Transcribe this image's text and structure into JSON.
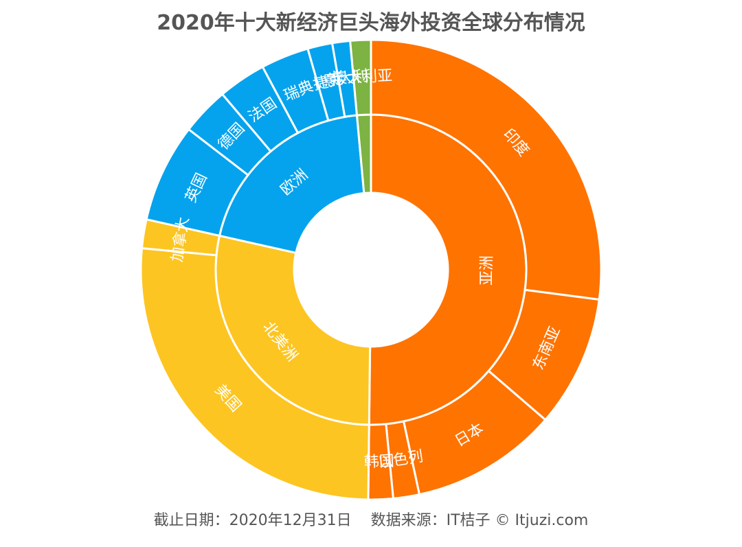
{
  "title": "2020年十大新经济巨头海外投资全球分布情况",
  "footer": "截止日期：2020年12月31日    数据来源：IT桔子 © Itjuzi.com",
  "chart_data": {
    "type": "sunburst",
    "title": "2020年十大新经济巨头海外投资全球分布情况",
    "inner": [
      {
        "name": "亚洲",
        "color": "#ff7300"
      },
      {
        "name": "北美洲",
        "color": "#fdc522"
      },
      {
        "name": "欧洲",
        "color": "#05a3ed"
      },
      {
        "name": "澳大利亚",
        "color": "#7cb342"
      }
    ],
    "outer": [
      {
        "name": "印度",
        "parent": "亚洲",
        "value": 28.1
      },
      {
        "name": "东南亚",
        "parent": "亚洲",
        "value": 9.6
      },
      {
        "name": "日本",
        "parent": "亚洲",
        "value": 10.7
      },
      {
        "name": "以色列",
        "parent": "亚洲",
        "value": 1.9
      },
      {
        "name": "韩国",
        "parent": "亚洲",
        "value": 1.8
      },
      {
        "name": "美国",
        "parent": "北美洲",
        "value": 27.3
      },
      {
        "name": "加拿大",
        "parent": "北美洲",
        "value": 2.1
      },
      {
        "name": "英国",
        "parent": "欧洲",
        "value": 7.2
      },
      {
        "name": "德国",
        "parent": "欧洲",
        "value": 3.5
      },
      {
        "name": "法国",
        "parent": "欧洲",
        "value": 3.5
      },
      {
        "name": "瑞典",
        "parent": "欧洲",
        "value": 3.5
      },
      {
        "name": "捷克",
        "parent": "欧洲",
        "value": 1.8
      },
      {
        "name": "意大利",
        "parent": "欧洲",
        "value": 1.3
      },
      {
        "name": "澳大利亚",
        "parent": "澳大利亚",
        "value": 1.5
      }
    ]
  }
}
